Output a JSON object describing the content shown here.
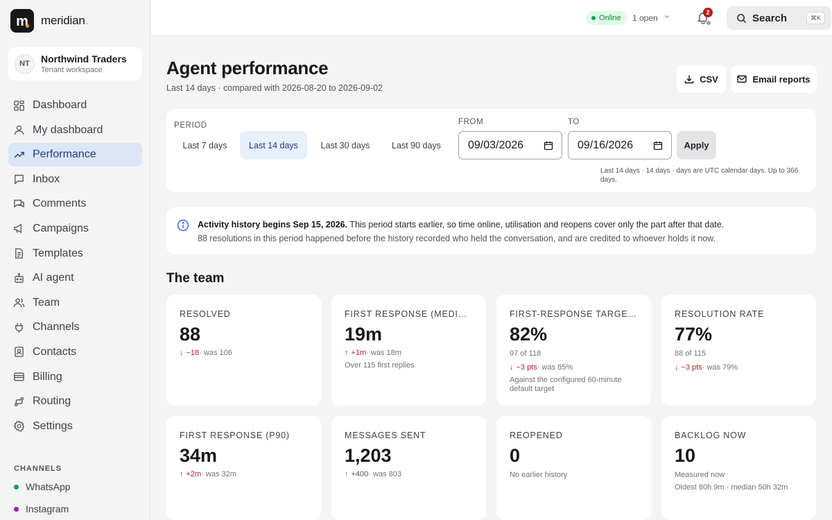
{
  "brand": {
    "name": "meridian",
    "logo_letter": "m",
    "accent": "#f59e0b"
  },
  "tenant": {
    "initials": "NT",
    "name": "Northwind Traders",
    "subtitle": "Tenant workspace"
  },
  "nav": {
    "items": [
      {
        "label": "Dashboard",
        "icon": "dashboard-grid-icon"
      },
      {
        "label": "My dashboard",
        "icon": "user-icon"
      },
      {
        "label": "Performance",
        "icon": "trend-up-icon",
        "active": true
      },
      {
        "label": "Inbox",
        "icon": "inbox-icon"
      },
      {
        "label": "Comments",
        "icon": "comments-icon"
      },
      {
        "label": "Campaigns",
        "icon": "megaphone-icon"
      },
      {
        "label": "Templates",
        "icon": "document-icon"
      },
      {
        "label": "AI agent",
        "icon": "bot-icon"
      },
      {
        "label": "Team",
        "icon": "users-icon"
      },
      {
        "label": "Channels",
        "icon": "plug-icon"
      },
      {
        "label": "Contacts",
        "icon": "contact-card-icon"
      },
      {
        "label": "Billing",
        "icon": "credit-card-icon"
      },
      {
        "label": "Routing",
        "icon": "routing-icon"
      },
      {
        "label": "Settings",
        "icon": "gear-icon"
      }
    ],
    "channels_title": "CHANNELS",
    "channels": [
      {
        "label": "WhatsApp",
        "color": "#16a34a"
      },
      {
        "label": "Instagram",
        "color": "#a21caf"
      }
    ]
  },
  "topbar": {
    "status": "Online",
    "status_color": "#16a34a",
    "open_count": "1 open",
    "notifications": "2",
    "search_label": "Search",
    "search_shortcut": "⌘K"
  },
  "header": {
    "title": "Agent performance",
    "subtitle": "Last 14 days · compared with 2026-08-20 to 2026-09-02",
    "csv_label": "CSV",
    "email_label": "Email reports"
  },
  "filters": {
    "period_label": "PERIOD",
    "periods": [
      "Last 7 days",
      "Last 14 days",
      "Last 30 days",
      "Last 90 days"
    ],
    "active_period": "Last 14 days",
    "from_label": "FROM",
    "from_value": "09/03/2026",
    "to_label": "TO",
    "to_value": "09/16/2026",
    "apply_label": "Apply",
    "note": "Last 14 days · 14 days · days are UTC calendar days. Up to 366 days."
  },
  "notice": {
    "bold": "Activity history begins Sep 15, 2026.",
    "text": " This period starts earlier, so time online, utilisation and reopens cover only the part after that date.",
    "line2": "88 resolutions in this period happened before the history recorded who held the conversation, and are credited to whoever holds it now."
  },
  "team": {
    "title": "The team",
    "kpis": [
      {
        "label": "RESOLVED",
        "value": "88",
        "arrow": "↓",
        "delta": "−18",
        "was": " · was 106",
        "tone": "red"
      },
      {
        "label": "FIRST RESPONSE (MEDIAN)",
        "value": "19m",
        "arrow": "↑",
        "delta": "+1m",
        "was": " · was 18m",
        "tone": "red",
        "note": "Over 115 first replies"
      },
      {
        "label": "FIRST-RESPONSE TARGET MET",
        "value": "82%",
        "sub": "97 of 118",
        "arrow": "↓",
        "delta": "−3 pts",
        "was": " · was 85%",
        "tone": "red",
        "note": "Against the configured 60-minute default target"
      },
      {
        "label": "RESOLUTION RATE",
        "value": "77%",
        "sub": "88 of 115",
        "arrow": "↓",
        "delta": "−3 pts",
        "was": " · was 79%",
        "tone": "red"
      },
      {
        "label": "FIRST RESPONSE (P90)",
        "value": "34m",
        "arrow": "↑",
        "delta": "+2m",
        "was": " · was 32m",
        "tone": "red"
      },
      {
        "label": "MESSAGES SENT",
        "value": "1,203",
        "arrow": "↑",
        "delta": "+400",
        "was": " · was 803",
        "tone": "grey"
      },
      {
        "label": "REOPENED",
        "value": "0",
        "note": "No earlier history"
      },
      {
        "label": "BACKLOG NOW",
        "value": "10",
        "note": "Measured now",
        "note2": "Oldest 80h 9m · median 50h 32m"
      }
    ]
  }
}
